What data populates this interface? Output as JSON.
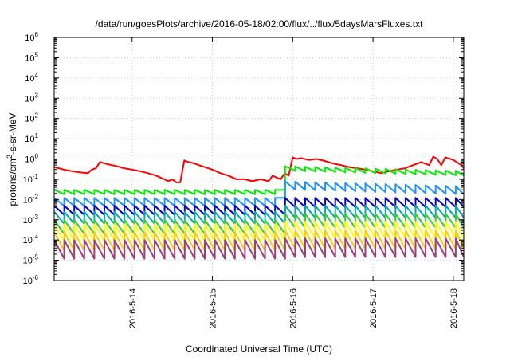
{
  "chart_data": {
    "type": "line",
    "title": "/data/run/goesPlots/archive/2016-05-18/02:00/flux/../flux/5daysMarsFluxes.txt",
    "xlabel": "Coordinated Universal Time (UTC)",
    "ylabel_prefix": "protons/cm",
    "ylabel_sup": "2",
    "ylabel_suffix": "-s-sr-MeV",
    "x_tick_labels": [
      "2016-5-14",
      "2016-5-15",
      "2016-5-16",
      "2016-5-17",
      "2016-5-18"
    ],
    "x_ticks": [
      0.0,
      1.0,
      2.0,
      3.0,
      4.0
    ],
    "xlim": [
      -0.97,
      4.13
    ],
    "y_scale": "log",
    "ylim": [
      1e-06,
      1000000.0
    ],
    "y_ticks": [
      {
        "base": "10",
        "exp": "-6",
        "value": 1e-06
      },
      {
        "base": "10",
        "exp": "-5",
        "value": 1e-05
      },
      {
        "base": "10",
        "exp": "-4",
        "value": 0.0001
      },
      {
        "base": "10",
        "exp": "-3",
        "value": 0.001
      },
      {
        "base": "10",
        "exp": "-2",
        "value": 0.01
      },
      {
        "base": "10",
        "exp": "-1",
        "value": 0.1
      },
      {
        "base": "10",
        "exp": "0",
        "value": 1
      },
      {
        "base": "10",
        "exp": "1",
        "value": 10
      },
      {
        "base": "10",
        "exp": "2",
        "value": 100
      },
      {
        "base": "10",
        "exp": "3",
        "value": 1000
      },
      {
        "base": "10",
        "exp": "4",
        "value": 10000
      },
      {
        "base": "10",
        "exp": "5",
        "value": 100000
      },
      {
        "base": "10",
        "exp": "6",
        "value": 1000000
      }
    ],
    "grid": true,
    "colors": [
      "#ff0000",
      "#00ee00",
      "#1e90ff",
      "#0000cd",
      "#00aaaa",
      "#33cc33",
      "#ffff00",
      "#ffcc00",
      "#a03c78"
    ],
    "series": [
      {
        "color": "#ff0000",
        "x": [
          -0.97,
          -0.85,
          -0.75,
          -0.65,
          -0.55,
          -0.5,
          -0.45,
          -0.4,
          -0.3,
          -0.2,
          -0.1,
          0.0,
          0.1,
          0.2,
          0.3,
          0.4,
          0.45,
          0.5,
          0.55,
          0.6,
          0.65,
          0.7,
          0.75,
          0.8,
          0.9,
          1.0,
          1.1,
          1.2,
          1.3,
          1.4,
          1.5,
          1.6,
          1.7,
          1.75,
          1.8,
          1.85,
          1.9,
          1.95,
          2.0,
          2.05,
          2.1,
          2.2,
          2.3,
          2.4,
          2.5,
          2.6,
          2.7,
          2.8,
          2.9,
          3.0,
          3.1,
          3.2,
          3.3,
          3.4,
          3.5,
          3.6,
          3.7,
          3.75,
          3.8,
          3.85,
          3.9,
          4.0,
          4.1,
          4.13
        ],
        "values": [
          0.4,
          0.3,
          0.25,
          0.22,
          0.2,
          0.3,
          0.35,
          0.7,
          0.55,
          0.45,
          0.35,
          0.3,
          0.25,
          0.2,
          0.15,
          0.1,
          0.08,
          0.1,
          0.07,
          0.07,
          0.85,
          0.7,
          0.65,
          0.55,
          0.4,
          0.3,
          0.2,
          0.15,
          0.1,
          0.1,
          0.08,
          0.1,
          0.08,
          0.15,
          0.12,
          0.1,
          0.2,
          0.15,
          1.2,
          1.0,
          1.1,
          0.9,
          1.0,
          0.8,
          0.6,
          0.5,
          0.4,
          0.35,
          0.3,
          0.25,
          0.2,
          0.25,
          0.3,
          0.35,
          0.5,
          0.7,
          0.5,
          1.3,
          1.0,
          0.5,
          1.2,
          0.9,
          0.5,
          0.35
        ]
      },
      {
        "color": "#00ee00",
        "peak": 0.03,
        "peak_after": 0.45,
        "ratio": 0.6
      },
      {
        "color": "#1e90ff",
        "peak": 0.012,
        "peak_after": 0.08,
        "ratio": 0.4
      },
      {
        "color": "#0000cd",
        "peak": 0.005,
        "peak_after": 0.012,
        "ratio": 0.35
      },
      {
        "color": "#00aaaa",
        "peak": 0.0025,
        "peak_after": 0.005,
        "ratio": 0.25
      },
      {
        "color": "#33cc33",
        "peak": 0.001,
        "peak_after": 0.002,
        "ratio": 0.2
      },
      {
        "color": "#ffff00",
        "peak": 0.0006,
        "peak_after": 0.0008,
        "ratio": 0.15
      },
      {
        "color": "#ffcc00",
        "peak": 0.00025,
        "peak_after": 0.0003,
        "ratio": 0.12
      },
      {
        "color": "#a03c78",
        "peak": 0.0001,
        "peak_after": 0.00012,
        "ratio": 0.12
      }
    ],
    "sawtooth_period_days": 0.125,
    "jump_x": 1.85
  }
}
